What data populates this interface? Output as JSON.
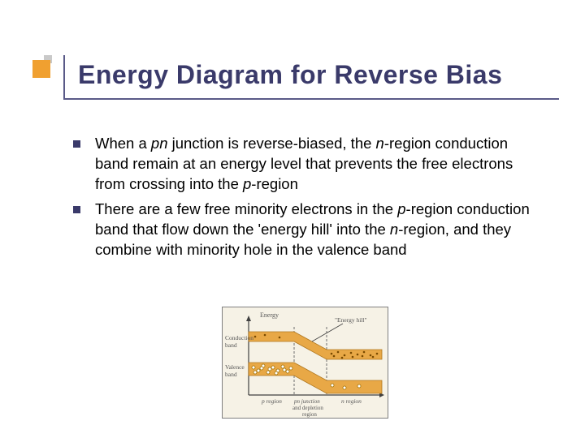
{
  "title": "Energy Diagram for Reverse Bias",
  "bullets": [
    {
      "fragments": [
        {
          "t": "When a ",
          "i": false
        },
        {
          "t": "pn",
          "i": true
        },
        {
          "t": " junction is reverse-biased, the ",
          "i": false
        },
        {
          "t": "n",
          "i": true
        },
        {
          "t": "-region conduction band remain at an energy level that prevents the free electrons from crossing into the ",
          "i": false
        },
        {
          "t": "p",
          "i": true
        },
        {
          "t": "-region",
          "i": false
        }
      ]
    },
    {
      "fragments": [
        {
          "t": "There are a few free minority electrons in the ",
          "i": false
        },
        {
          "t": "p",
          "i": true
        },
        {
          "t": "-region conduction band that flow down the 'energy hill' into the ",
          "i": false
        },
        {
          "t": "n",
          "i": true
        },
        {
          "t": "-region, and they combine with minority hole in the valence band",
          "i": false
        }
      ]
    }
  ],
  "diagram": {
    "bg": "#f6f2e6",
    "axis_color": "#404040",
    "dash_color": "#606060",
    "cond_band_color": "#e8a846",
    "cond_band_stroke": "#b07820",
    "val_band_color": "#e8a846",
    "val_band_stroke": "#b07820",
    "hole_fill": "#ffffff",
    "hole_stroke": "#a07000",
    "text_color": "#555555",
    "labels": {
      "energy": "Energy",
      "conduction": "Conduction band",
      "valence": "Valence band",
      "energy_hill": "\"Energy hill\"",
      "p_region": "p region",
      "pn_junction": "pn junction and depletion region",
      "n_region": "n region"
    },
    "label_fontsize": 7.5,
    "axis_fontsize": 8
  },
  "colors": {
    "title_color": "#3a3a6a",
    "accent_orange": "#f0a030",
    "accent_grey": "#c9c9c9",
    "rule_color": "#5a5a88"
  }
}
